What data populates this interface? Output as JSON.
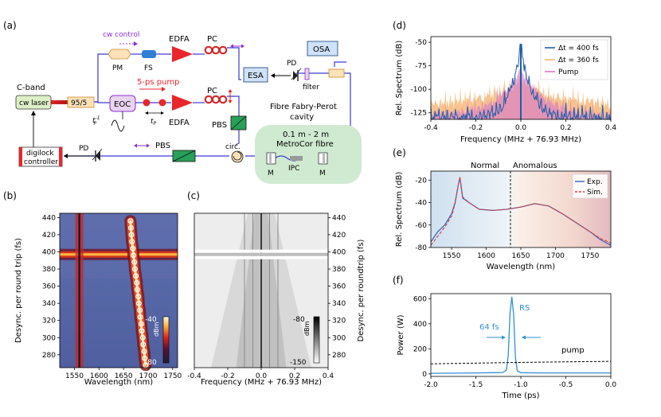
{
  "panel_labels": {
    "a": "(a)",
    "b": "(b)",
    "c": "(c)",
    "d": "(d)",
    "e": "(e)",
    "f": "(f)"
  },
  "setup": {
    "cw_control": "cw control",
    "edfa_top": "EDFA",
    "pc_top": "PC",
    "pm": "PM",
    "fs": "FS",
    "c_band": "C-band",
    "cw_laser": "cw laser",
    "splitter": "95/5",
    "eoc": "EOC",
    "pump_label": "5-ps pump",
    "edfa_mid": "EDFA",
    "pc_mid": "PC",
    "tp": "t",
    "tp_sub": "P",
    "tp_inv": "t",
    "tp_inv_sub": "P",
    "tp_inv_sup": "-1",
    "pbs_top": "PBS",
    "pbs_bottom": "PBS",
    "osa": "OSA",
    "esa": "ESA",
    "pd_top": "PD",
    "filter": "filter",
    "cavity_title_1": "Fibre Fabry-Perot",
    "cavity_title_2": "cavity",
    "fibre_1": "0.1 m - 2 m",
    "fibre_2": "MetroCor fibre",
    "mirror_l": "M",
    "mirror_r": "M",
    "ipc": "IPC",
    "circ": "circ.",
    "pd_bottom": "PD",
    "digilock_1": "digilock",
    "digilock_2": "controller",
    "colors": {
      "edfa": "#e8262b",
      "pump": "#e8262b",
      "violet": "#8b2fd6",
      "pm": "#fbe2b8",
      "fs": "#2f7fd8",
      "osa": "#cfe2f7",
      "eoc": "#e9d3ef",
      "laser": "#dcefc6",
      "pbs": "#27a05a",
      "cavity": "#cfead1"
    }
  },
  "chart_data": [
    {
      "id": "b",
      "type": "heatmap",
      "xlabel": "Wavelength (nm)",
      "ylabel": "Desync. per round trip (fs)",
      "xlim": [
        1520,
        1760
      ],
      "ylim": [
        265,
        445
      ],
      "xticks": [
        "1550",
        "1600",
        "1650",
        "1700",
        "1750"
      ],
      "yticks": [
        "280",
        "300",
        "320",
        "340",
        "360",
        "380",
        "400",
        "420",
        "440"
      ],
      "colorbar": {
        "label": "dBm",
        "max": "-40",
        "min": "-80"
      },
      "pump_line_nm": 1560,
      "bright_row_fs": 397,
      "circles_desync_fs": [
        436,
        428,
        420,
        412,
        404,
        396,
        388,
        380,
        372,
        364,
        356,
        348,
        340,
        332,
        324,
        316,
        308,
        300,
        292,
        284,
        276,
        268
      ],
      "circles_wavelength_nm": [
        1664,
        1665,
        1666,
        1667,
        1669,
        1670,
        1672,
        1673,
        1675,
        1677,
        1678,
        1680,
        1681,
        1683,
        1684,
        1686,
        1687,
        1689,
        1690,
        1692,
        1693,
        1695
      ]
    },
    {
      "id": "c",
      "type": "heatmap",
      "xlabel": "Frequency (MHz + 76.93 MHz)",
      "ylabel": "Desync. per roundtrip (fs)",
      "xlim": [
        -0.4,
        0.4
      ],
      "ylim": [
        265,
        445
      ],
      "xticks": [
        "-0.4",
        "-0.2",
        "0.0",
        "0.2",
        "0.4"
      ],
      "yticks": [
        "280",
        "300",
        "320",
        "340",
        "360",
        "380",
        "400",
        "420",
        "440"
      ],
      "colorbar": {
        "label": "dBm",
        "max": "-80",
        "min": "-150"
      },
      "bright_row_fs": 397
    },
    {
      "id": "d",
      "type": "line",
      "xlabel": "Frequency (MHz + 76.93 MHz)",
      "ylabel": "Rel. Spectrum (dB)",
      "xlim": [
        -0.4,
        0.4
      ],
      "ylim": [
        -132,
        -44
      ],
      "xticks": [
        "-0.4",
        "-0.2",
        "0.0",
        "0.2",
        "0.4"
      ],
      "yticks": [
        "-125",
        "-100",
        "-75",
        "-50"
      ],
      "series": [
        {
          "name": "Δt = 400 fs",
          "color": "#1f5fa8",
          "peak_db": -52,
          "floor_db": -127
        },
        {
          "name": "Δt = 360 fs",
          "color": "#f7b97a",
          "peak_db": -90,
          "floor_db": -118
        },
        {
          "name": "Pump",
          "color": "#d77ac9",
          "peak_db": -78,
          "floor_db": -124
        }
      ]
    },
    {
      "id": "e",
      "type": "line",
      "xlabel": "Wavelength (nm)",
      "ylabel": "Rel. Spectrum (dB)",
      "xlim": [
        1520,
        1780
      ],
      "ylim": [
        -80,
        -12
      ],
      "xticks": [
        "1550",
        "1600",
        "1650",
        "1700",
        "1750"
      ],
      "yticks": [
        "-20",
        "-40",
        "-60",
        "-80"
      ],
      "regions": {
        "normal": "Normal",
        "anomalous": "Anomalous",
        "zdw_nm": 1635
      },
      "series": [
        {
          "name": "Exp.",
          "color": "#2f62b5",
          "x": [
            1520,
            1530,
            1540,
            1550,
            1555,
            1560,
            1562,
            1566,
            1575,
            1590,
            1610,
            1630,
            1650,
            1670,
            1690,
            1710,
            1730,
            1750,
            1765,
            1780
          ],
          "y": [
            -75,
            -66,
            -60,
            -50,
            -40,
            -23,
            -18,
            -36,
            -40,
            -46,
            -47,
            -46,
            -44,
            -41,
            -43,
            -50,
            -58,
            -66,
            -73,
            -78
          ]
        },
        {
          "name": "Sim.",
          "color": "#e0383b",
          "x": [
            1520,
            1530,
            1540,
            1550,
            1555,
            1560,
            1562,
            1566,
            1575,
            1590,
            1610,
            1630,
            1650,
            1670,
            1690,
            1710,
            1730,
            1750,
            1765,
            1780
          ],
          "y": [
            -78,
            -70,
            -62,
            -52,
            -41,
            -23,
            -17,
            -35,
            -40,
            -46,
            -47,
            -46,
            -44,
            -41,
            -43,
            -50,
            -58,
            -66,
            -72,
            -76
          ]
        }
      ]
    },
    {
      "id": "f",
      "type": "line",
      "xlabel": "Time (ps)",
      "ylabel": "Power (W)",
      "xlim": [
        -2.0,
        0.0
      ],
      "ylim": [
        -20,
        640
      ],
      "xticks": [
        "-2.0",
        "-1.5",
        "-1.0",
        "-0.5",
        "0.0"
      ],
      "yticks": [
        "0",
        "200",
        "400",
        "600"
      ],
      "annotations": {
        "rs": "RS",
        "width": "64 fs",
        "pump": "pump"
      },
      "series": [
        {
          "name": "RS",
          "color": "#2f8fd6",
          "x": [
            -2.0,
            -1.5,
            -1.3,
            -1.2,
            -1.16,
            -1.14,
            -1.12,
            -1.1,
            -1.08,
            -1.06,
            -1.04,
            -1.0,
            -0.8,
            -0.5,
            0.0
          ],
          "y": [
            5,
            8,
            10,
            12,
            30,
            150,
            480,
            615,
            470,
            130,
            25,
            10,
            8,
            8,
            8
          ]
        },
        {
          "name": "pump",
          "color": "#000000",
          "x": [
            -2.0,
            -1.5,
            -1.0,
            -0.5,
            0.0
          ],
          "y": [
            80,
            86,
            92,
            96,
            100
          ]
        }
      ]
    }
  ]
}
